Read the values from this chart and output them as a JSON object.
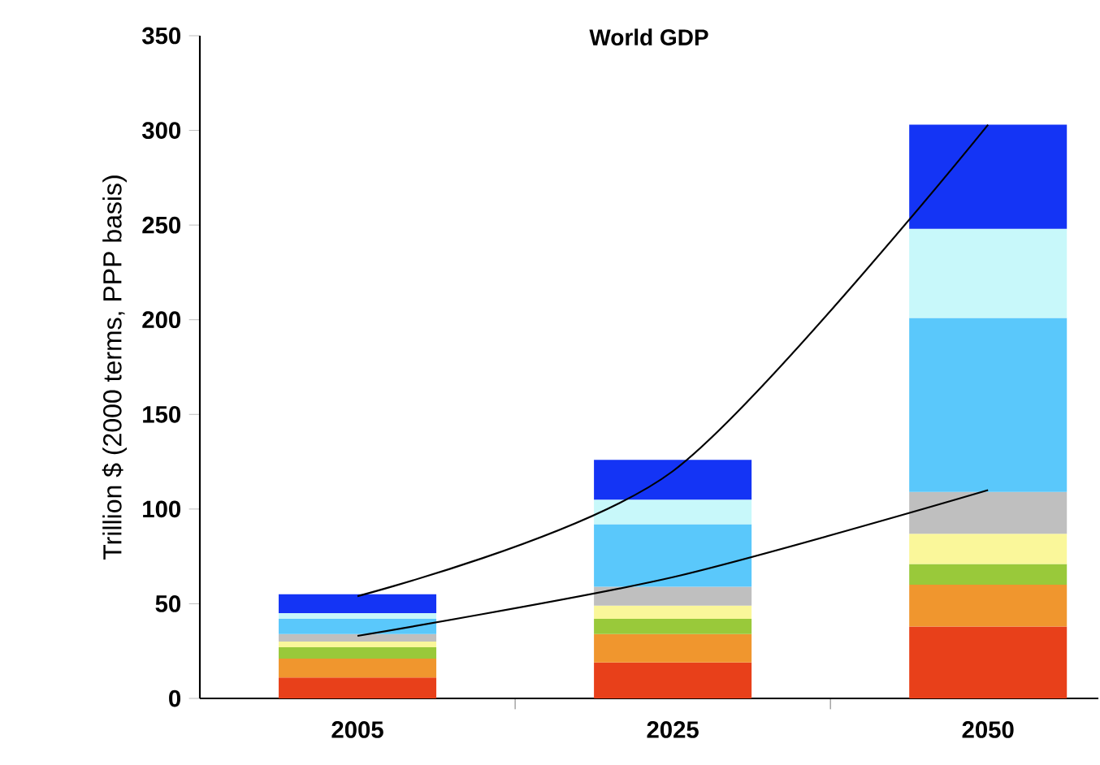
{
  "chart_data": {
    "type": "bar",
    "title": "World GDP",
    "ylabel": "Trillion $ (2000 terms, PPP basis)",
    "categories": [
      "2005",
      "2025",
      "2050"
    ],
    "stacked": true,
    "grid": false,
    "ylim": [
      0,
      350
    ],
    "yticks": [
      0,
      50,
      100,
      150,
      200,
      250,
      300,
      350
    ],
    "series": [
      {
        "color": "#e8401a",
        "values": [
          11,
          19,
          38
        ]
      },
      {
        "color": "#f0962e",
        "values": [
          10,
          15,
          22
        ]
      },
      {
        "color": "#99c93a",
        "values": [
          6,
          8,
          11
        ]
      },
      {
        "color": "#faf79a",
        "values": [
          3,
          7,
          16
        ]
      },
      {
        "color": "#bfbfbf",
        "values": [
          4,
          10,
          22
        ]
      },
      {
        "color": "#5ac8fb",
        "values": [
          8,
          33,
          92
        ]
      },
      {
        "color": "#c8f8fa",
        "values": [
          3,
          13,
          47
        ]
      },
      {
        "color": "#1434f5",
        "values": [
          10,
          21,
          55
        ]
      },
      {
        "type": "line",
        "color": "#000000",
        "values": [
          54,
          120,
          303
        ]
      },
      {
        "type": "line",
        "color": "#000000",
        "values": [
          33,
          64,
          110
        ]
      }
    ]
  }
}
